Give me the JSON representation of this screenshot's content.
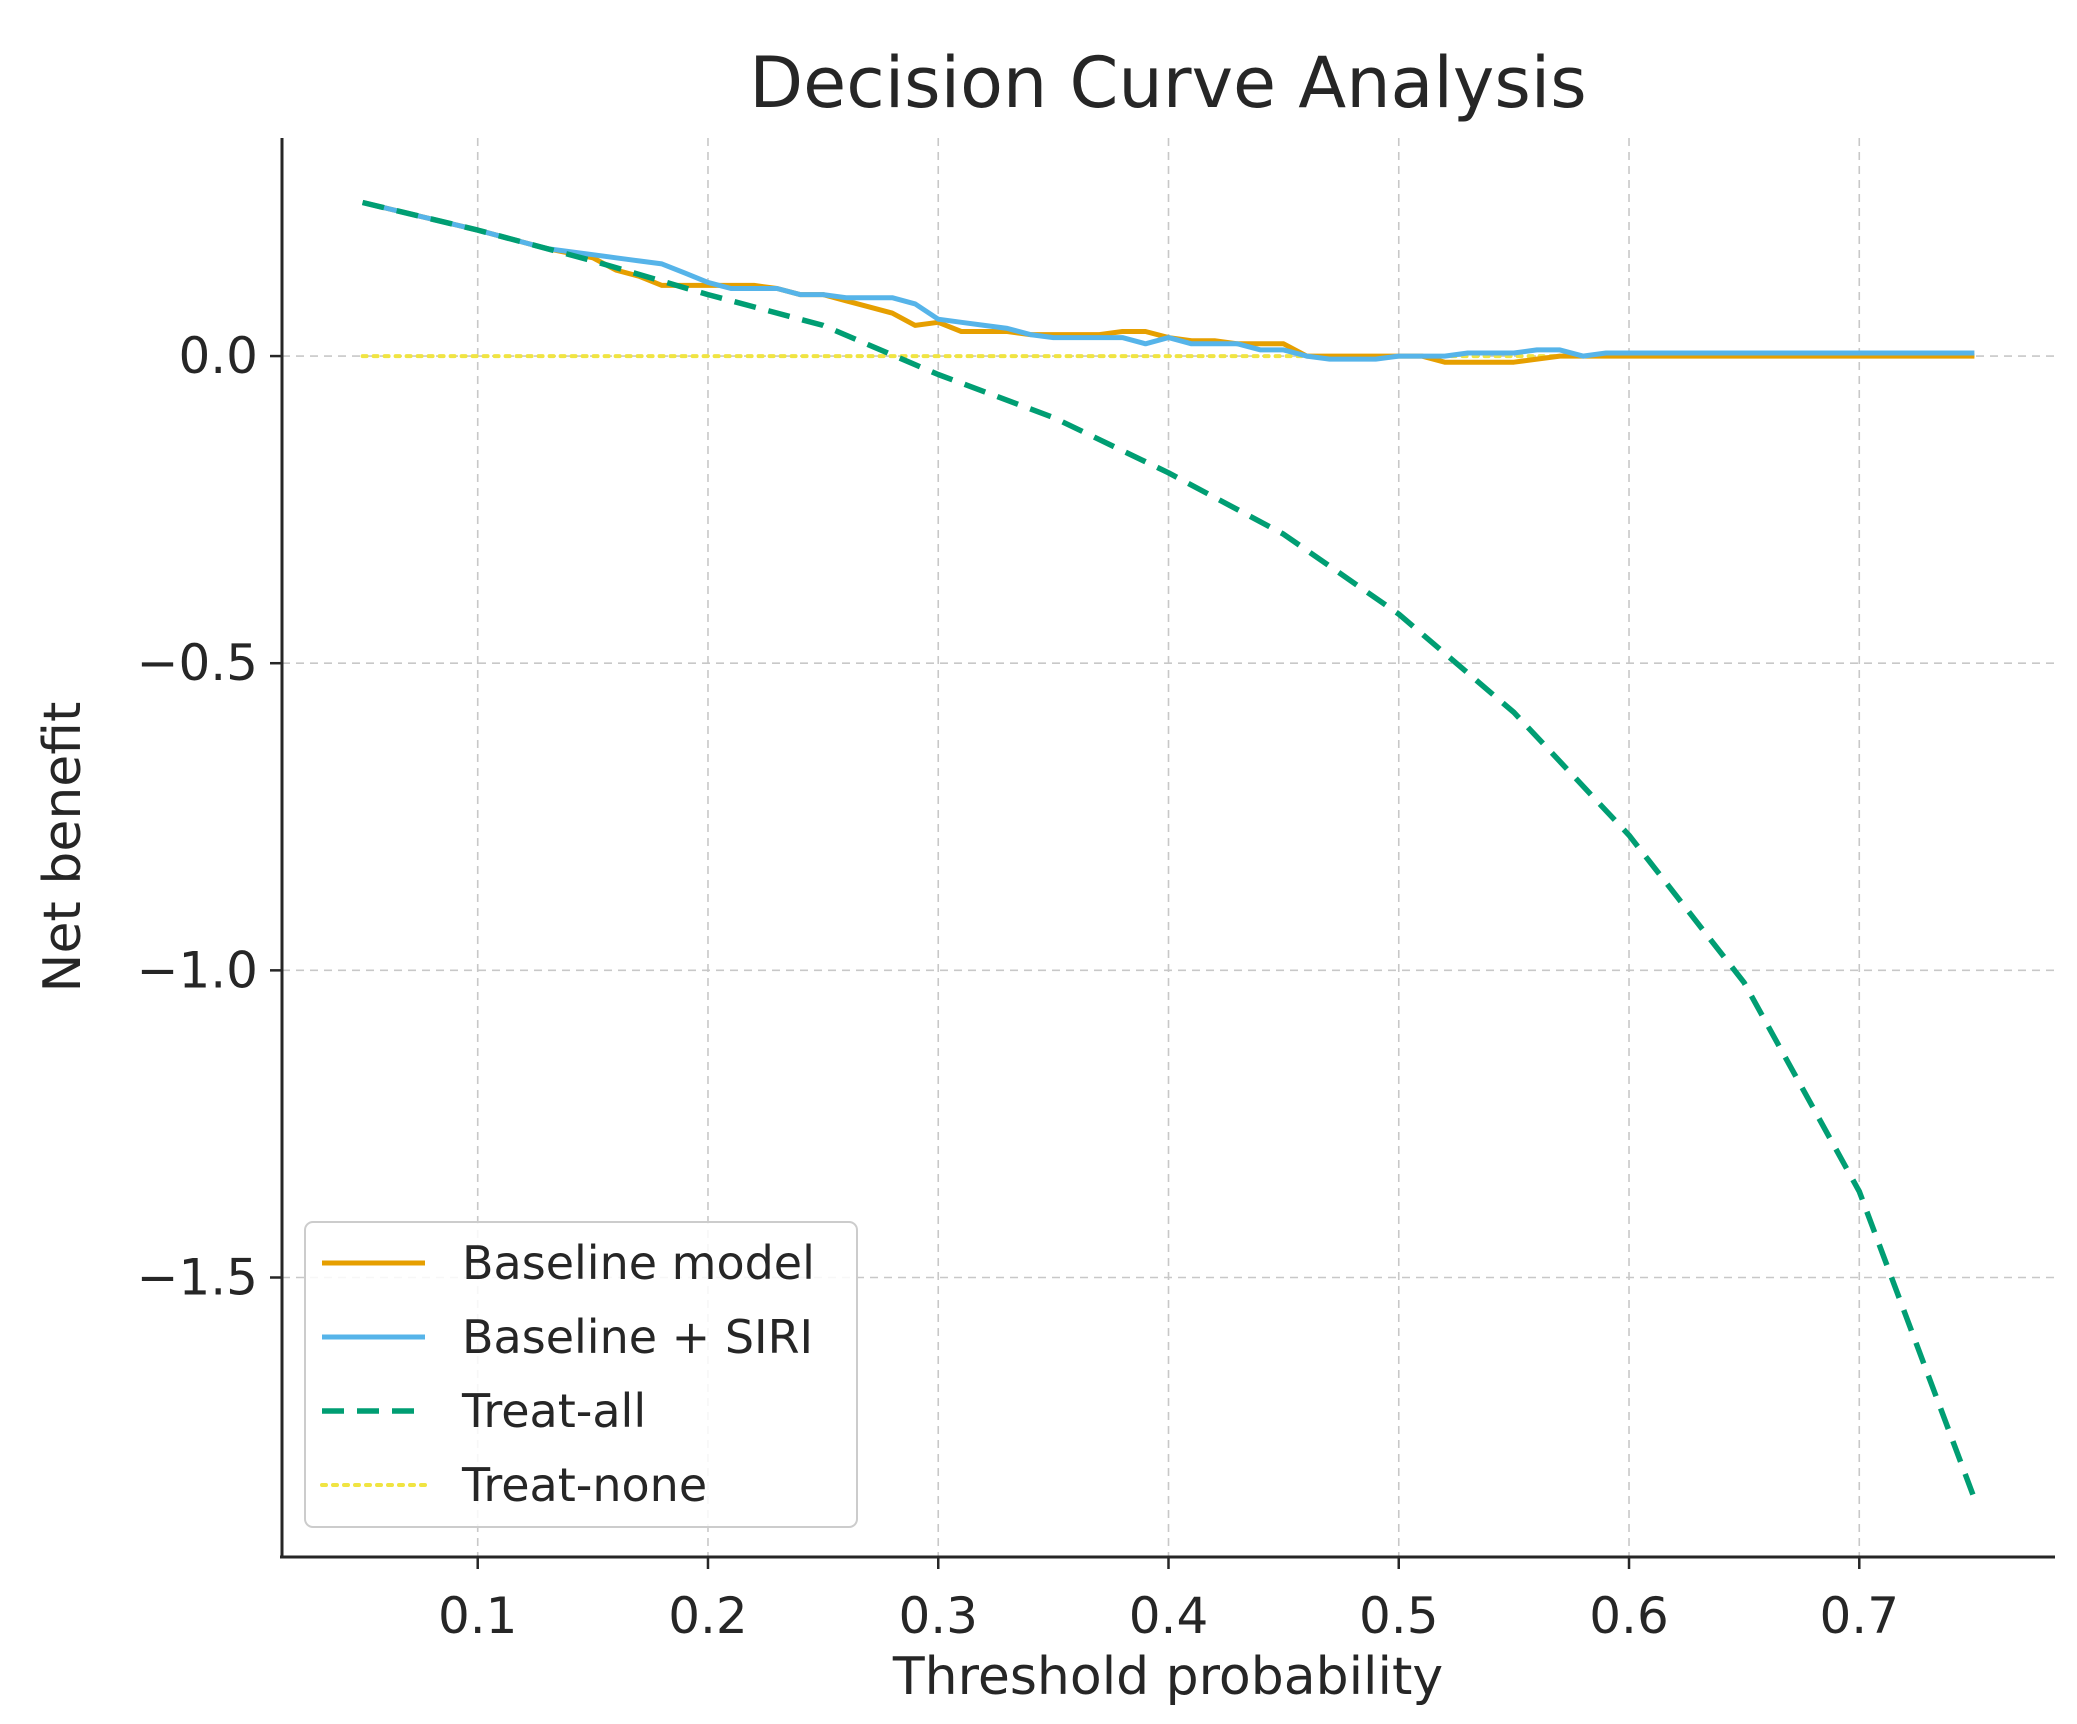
{
  "chart_data": {
    "type": "line",
    "title": "Decision Curve Analysis",
    "xlabel": "Threshold probability",
    "ylabel": "Net benefit",
    "xlim": [
      0.015,
      0.785
    ],
    "ylim": [
      -1.955,
      0.355
    ],
    "grid": true,
    "legend_position": "lower-left",
    "xticks": [
      0.1,
      0.2,
      0.3,
      0.4,
      0.5,
      0.6,
      0.7
    ],
    "xtick_labels": [
      "0.1",
      "0.2",
      "0.3",
      "0.4",
      "0.5",
      "0.6",
      "0.7"
    ],
    "yticks": [
      0.0,
      -0.5,
      -1.0,
      -1.5
    ],
    "ytick_labels": [
      "0.0",
      "−0.5",
      "−1.0",
      "−1.5"
    ],
    "series": [
      {
        "name": "Baseline model",
        "color": "#E69F00",
        "style": "solid",
        "x": [
          0.05,
          0.1,
          0.13,
          0.15,
          0.16,
          0.17,
          0.18,
          0.19,
          0.2,
          0.21,
          0.22,
          0.23,
          0.24,
          0.25,
          0.26,
          0.27,
          0.28,
          0.29,
          0.3,
          0.31,
          0.32,
          0.33,
          0.34,
          0.35,
          0.36,
          0.37,
          0.38,
          0.39,
          0.4,
          0.41,
          0.42,
          0.43,
          0.44,
          0.45,
          0.46,
          0.47,
          0.48,
          0.49,
          0.5,
          0.51,
          0.52,
          0.53,
          0.54,
          0.55,
          0.56,
          0.57,
          0.58,
          0.6,
          0.65,
          0.7,
          0.75
        ],
        "values": [
          0.25,
          0.205,
          0.175,
          0.16,
          0.14,
          0.13,
          0.115,
          0.115,
          0.115,
          0.115,
          0.115,
          0.11,
          0.1,
          0.1,
          0.09,
          0.08,
          0.07,
          0.05,
          0.055,
          0.04,
          0.04,
          0.04,
          0.035,
          0.035,
          0.035,
          0.035,
          0.04,
          0.04,
          0.03,
          0.025,
          0.025,
          0.02,
          0.02,
          0.02,
          0.0,
          0.0,
          0.0,
          0.0,
          0.0,
          0.0,
          -0.01,
          -0.01,
          -0.01,
          -0.01,
          -0.005,
          0.0,
          0.0,
          0.0,
          0.0,
          0.0,
          0.0
        ]
      },
      {
        "name": "Baseline + SIRI",
        "color": "#56B4E9",
        "style": "solid",
        "x": [
          0.05,
          0.1,
          0.13,
          0.15,
          0.16,
          0.17,
          0.18,
          0.19,
          0.2,
          0.21,
          0.22,
          0.23,
          0.24,
          0.25,
          0.26,
          0.27,
          0.28,
          0.29,
          0.3,
          0.31,
          0.32,
          0.33,
          0.34,
          0.35,
          0.36,
          0.37,
          0.38,
          0.39,
          0.4,
          0.41,
          0.42,
          0.43,
          0.44,
          0.45,
          0.46,
          0.47,
          0.48,
          0.49,
          0.5,
          0.51,
          0.52,
          0.53,
          0.54,
          0.55,
          0.56,
          0.57,
          0.58,
          0.59,
          0.6,
          0.65,
          0.7,
          0.75
        ],
        "values": [
          0.25,
          0.205,
          0.175,
          0.165,
          0.16,
          0.155,
          0.15,
          0.135,
          0.12,
          0.11,
          0.11,
          0.11,
          0.1,
          0.1,
          0.095,
          0.095,
          0.095,
          0.085,
          0.06,
          0.055,
          0.05,
          0.045,
          0.035,
          0.03,
          0.03,
          0.03,
          0.03,
          0.02,
          0.03,
          0.02,
          0.02,
          0.02,
          0.01,
          0.01,
          0.0,
          -0.005,
          -0.005,
          -0.005,
          0.0,
          0.0,
          0.0,
          0.005,
          0.005,
          0.005,
          0.01,
          0.01,
          0.0,
          0.005,
          0.005,
          0.005,
          0.005,
          0.005
        ]
      },
      {
        "name": "Treat-all",
        "color": "#009E73",
        "style": "dashed",
        "x": [
          0.05,
          0.1,
          0.15,
          0.2,
          0.25,
          0.3,
          0.35,
          0.4,
          0.45,
          0.5,
          0.55,
          0.6,
          0.65,
          0.7,
          0.75
        ],
        "values": [
          0.25,
          0.205,
          0.155,
          0.1,
          0.05,
          -0.03,
          -0.1,
          -0.19,
          -0.29,
          -0.42,
          -0.58,
          -0.78,
          -1.02,
          -1.36,
          -1.86
        ]
      },
      {
        "name": "Treat-none",
        "color": "#F0E442",
        "style": "dotted",
        "x": [
          0.05,
          0.75
        ],
        "values": [
          0.0,
          0.0
        ]
      }
    ]
  }
}
